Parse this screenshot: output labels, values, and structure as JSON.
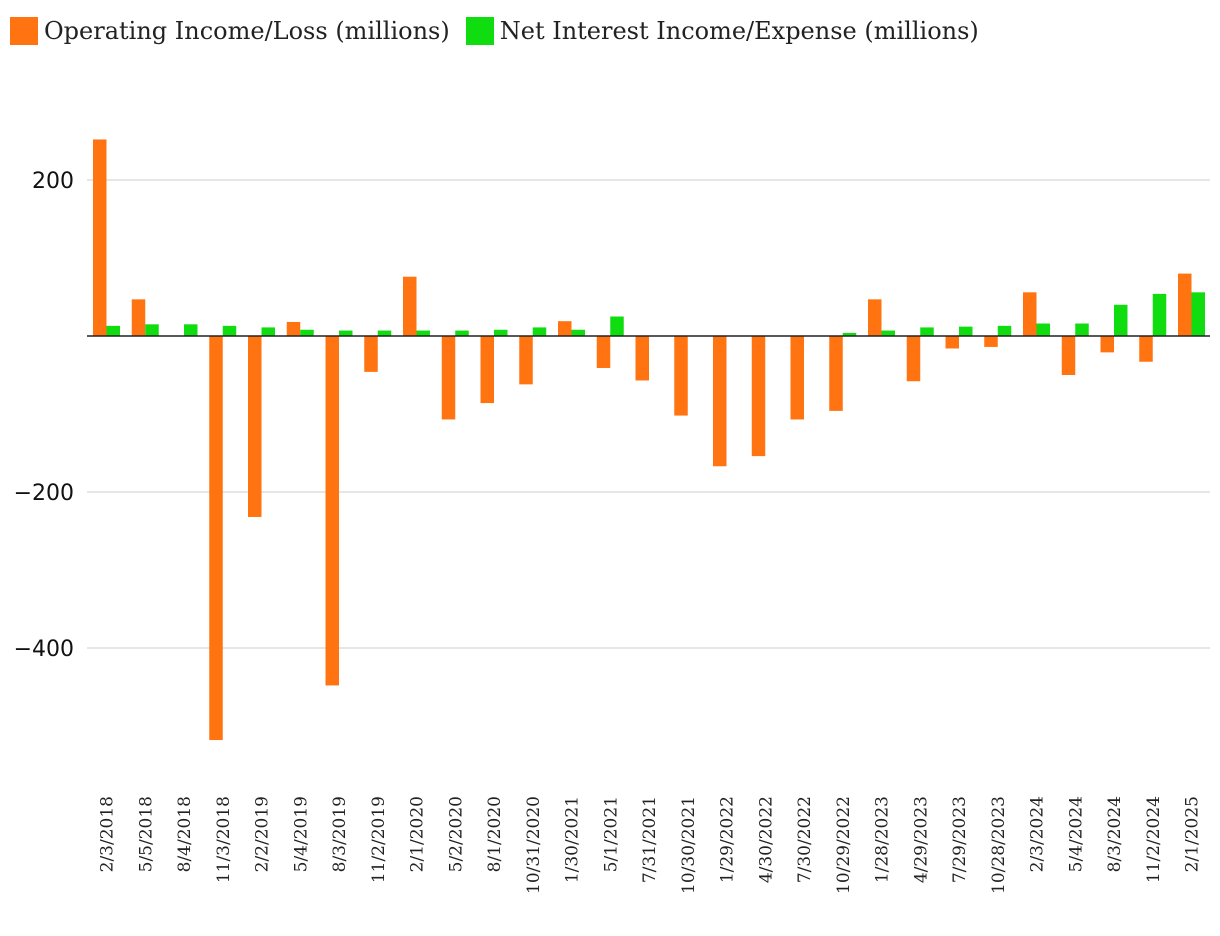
{
  "chart_data": {
    "type": "bar",
    "title": "",
    "xlabel": "",
    "ylabel": "",
    "ylim": [
      -580,
      250
    ],
    "yticks": [
      200,
      -200,
      -400
    ],
    "ytick_labels": [
      "200",
      "−200",
      "−400"
    ],
    "grid": true,
    "legend_position": "top-left",
    "categories": [
      "2/3/2018",
      "5/5/2018",
      "8/4/2018",
      "11/3/2018",
      "2/2/2019",
      "5/4/2019",
      "8/3/2019",
      "11/2/2019",
      "2/1/2020",
      "5/2/2020",
      "8/1/2020",
      "10/31/2020",
      "1/30/2021",
      "5/1/2021",
      "7/31/2021",
      "10/30/2021",
      "1/29/2022",
      "4/30/2022",
      "7/30/2022",
      "10/29/2022",
      "1/28/2023",
      "4/29/2023",
      "7/29/2023",
      "10/28/2023",
      "2/3/2024",
      "5/4/2024",
      "8/3/2024",
      "11/2/2024",
      "2/1/2025"
    ],
    "series": [
      {
        "name": "Operating Income/Loss (millions)",
        "color": "#ff7410",
        "values": [
          252,
          47,
          0,
          -518,
          -232,
          18,
          -448,
          -46,
          76,
          -107,
          -86,
          -62,
          19,
          -41,
          -57,
          -102,
          -167,
          -154,
          -107,
          -96,
          47,
          -58,
          -16,
          -14,
          56,
          -50,
          -21,
          -33,
          80
        ]
      },
      {
        "name": "Net Interest Income/Expense (millions)",
        "color": "#10dd10",
        "values": [
          13,
          15,
          15,
          13,
          11,
          8,
          7,
          7,
          7,
          7,
          8,
          11,
          8,
          25,
          0,
          0,
          0,
          0,
          0,
          4,
          7,
          11,
          12,
          13,
          16,
          16,
          40,
          54,
          56
        ]
      }
    ]
  }
}
